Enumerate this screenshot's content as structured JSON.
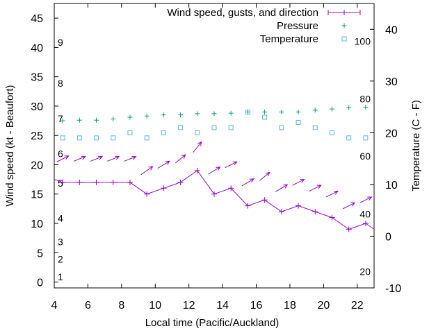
{
  "chart_data": {
    "type": "line",
    "xlabel": "Local time (Pacific/Auckland)",
    "ylabel": "Wind speed (kt - Beaufort)",
    "y2label": "Temperature (C - F)",
    "xlim": [
      4,
      23
    ],
    "ylim": [
      -1,
      47.5
    ],
    "y2lim": [
      -10,
      45
    ],
    "xticks": [
      "4",
      "6",
      "8",
      "10",
      "12",
      "14",
      "16",
      "18",
      "20",
      "22"
    ],
    "yticks": [
      "0",
      "5",
      "10",
      "15",
      "20",
      "25",
      "30",
      "35",
      "40",
      "45"
    ],
    "y2ticks": [
      "-10",
      "0",
      "10",
      "20",
      "30",
      "40"
    ],
    "beaufort_labels": [
      {
        "label": "1",
        "y": 1
      },
      {
        "label": "2",
        "y": 4
      },
      {
        "label": "3",
        "y": 7
      },
      {
        "label": "4",
        "y": 11
      },
      {
        "label": "5",
        "y": 17
      },
      {
        "label": "6",
        "y": 22
      },
      {
        "label": "7",
        "y": 28
      },
      {
        "label": "8",
        "y": 34
      },
      {
        "label": "9",
        "y": 41
      }
    ],
    "fahrenheit_labels": [
      {
        "label": "20",
        "temp": -6.7
      },
      {
        "label": "40",
        "temp": 4.4
      },
      {
        "label": "60",
        "temp": 15.6
      },
      {
        "label": "80",
        "temp": 26.7
      },
      {
        "label": "100",
        "temp": 37.8
      }
    ],
    "legend": [
      {
        "label": "Wind speed, gusts, and direction",
        "color": "#9400d3"
      },
      {
        "label": "Pressure",
        "color": "#009e73"
      },
      {
        "label": "Temperature",
        "color": "#56b4e9"
      }
    ],
    "series": [
      {
        "name": "Wind speed, gusts, and direction",
        "color": "#9400d3",
        "x": [
          3.5,
          4.5,
          5.5,
          6.5,
          7.5,
          8.5,
          9.5,
          10.5,
          11.5,
          12.5,
          13.5,
          14.5,
          15.5,
          16.5,
          17.5,
          18.5,
          19.5,
          20.5,
          21.5,
          22.5,
          23.5
        ],
        "values": [
          18,
          17,
          17,
          17,
          17,
          17,
          15,
          16,
          17,
          19,
          15,
          16,
          13,
          14,
          12,
          13,
          12,
          11,
          9,
          10,
          8
        ]
      },
      {
        "name": "Gusts",
        "color": "#9400d3",
        "x": [
          4.5,
          5.5,
          6.5,
          7.5,
          8.5,
          9.5,
          10.5,
          11.5,
          12.5,
          13.5,
          14.5,
          15.5,
          16.5,
          17.5,
          18.5,
          19.5,
          20.5,
          21.5,
          22.5
        ],
        "values": [
          21,
          21,
          21,
          21,
          21,
          19,
          20,
          21,
          23,
          19,
          20,
          17,
          18,
          16,
          17,
          16,
          15,
          13,
          14
        ],
        "direction_dx": [
          0.35,
          0.35,
          0.35,
          0.35,
          0.35,
          0.35,
          0.35,
          0.3,
          0.25,
          0.35,
          0.35,
          0.35,
          0.3,
          0.35,
          0.35,
          0.35,
          0.35,
          0.35,
          0.35
        ],
        "direction_dy": [
          0.5,
          0.4,
          0.4,
          0.4,
          0.4,
          0.7,
          0.6,
          0.7,
          0.9,
          0.6,
          0.5,
          0.6,
          0.7,
          0.6,
          0.5,
          0.5,
          0.5,
          0.5,
          0.5
        ]
      },
      {
        "name": "Pressure",
        "color": "#009e73",
        "x": [
          4.5,
          5.5,
          6.5,
          7.5,
          8.5,
          9.5,
          10.5,
          11.5,
          12.5,
          13.5,
          14.5,
          15.5,
          16.5,
          17.5,
          18.5,
          19.5,
          20.5,
          21.5,
          22.5
        ],
        "values": [
          27.5,
          27.6,
          27.6,
          27.8,
          28.1,
          28.3,
          28.5,
          28.5,
          28.7,
          28.7,
          28.8,
          29,
          29,
          29,
          29,
          29.3,
          29.5,
          29.7,
          29.8
        ]
      },
      {
        "name": "Temperature",
        "color": "#56b4e9",
        "x": [
          4.5,
          5.5,
          6.5,
          7.5,
          8.5,
          9.5,
          10.5,
          11.5,
          12.5,
          13.5,
          14.5,
          15.5,
          16.5,
          17.5,
          18.5,
          19.5,
          20.5,
          21.5,
          22.5
        ],
        "values": [
          19,
          19,
          19,
          19,
          20,
          19,
          20,
          21,
          20,
          21,
          21,
          24,
          23,
          21,
          22,
          21,
          20,
          19,
          19
        ]
      }
    ]
  }
}
